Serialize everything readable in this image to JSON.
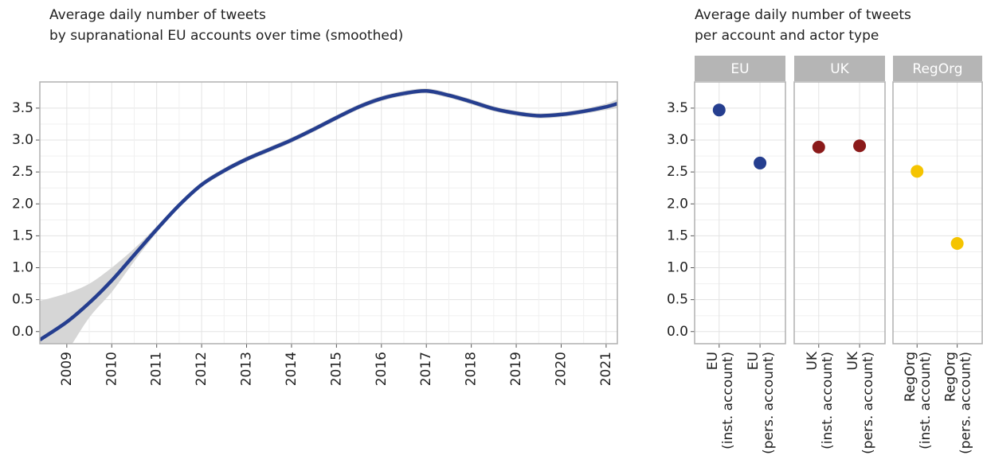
{
  "chart_data": [
    {
      "type": "line",
      "title": [
        "Average daily number of tweets",
        "by supranational EU accounts over time (smoothed)"
      ],
      "x": [
        2008.4,
        2009,
        2009.5,
        2010,
        2010.5,
        2011,
        2011.5,
        2012,
        2012.5,
        2013,
        2013.5,
        2014,
        2014.5,
        2015,
        2015.5,
        2016,
        2016.5,
        2017,
        2017.5,
        2018,
        2018.5,
        2019,
        2019.5,
        2020,
        2020.5,
        2021,
        2021.25
      ],
      "values": [
        -0.13,
        0.15,
        0.45,
        0.8,
        1.2,
        1.6,
        1.98,
        2.3,
        2.52,
        2.7,
        2.85,
        3.0,
        3.17,
        3.35,
        3.52,
        3.65,
        3.73,
        3.77,
        3.7,
        3.6,
        3.49,
        3.42,
        3.38,
        3.4,
        3.45,
        3.52,
        3.57
      ],
      "lower": [
        -0.9,
        -0.32,
        0.22,
        0.62,
        1.1,
        1.55,
        1.94,
        2.26,
        2.48,
        2.66,
        2.81,
        2.96,
        3.13,
        3.31,
        3.48,
        3.61,
        3.69,
        3.73,
        3.66,
        3.56,
        3.45,
        3.38,
        3.34,
        3.36,
        3.41,
        3.47,
        3.5
      ],
      "upper": [
        0.48,
        0.6,
        0.75,
        1.0,
        1.3,
        1.65,
        2.02,
        2.34,
        2.56,
        2.74,
        2.89,
        3.04,
        3.21,
        3.39,
        3.56,
        3.69,
        3.77,
        3.81,
        3.74,
        3.64,
        3.53,
        3.46,
        3.42,
        3.44,
        3.49,
        3.57,
        3.64
      ],
      "color": "#253e8f",
      "band_color": "#d6d6d6",
      "xlim": [
        2008.4,
        2021.25
      ],
      "xticks": [
        2009,
        2010,
        2011,
        2012,
        2013,
        2014,
        2015,
        2016,
        2017,
        2018,
        2019,
        2020,
        2021
      ],
      "ylim": [
        -0.19,
        3.91
      ],
      "yticks": [
        {
          "value": 0,
          "label": "0.0"
        },
        0.5,
        {
          "value": 1,
          "label": "1.0"
        },
        1.5,
        {
          "value": 2,
          "label": "2.0"
        },
        2.5,
        {
          "value": 3,
          "label": "3.0"
        },
        3.5
      ],
      "grid": true
    },
    {
      "type": "scatter",
      "title": [
        "Average daily number of tweets",
        "per account and actor type"
      ],
      "facets": [
        {
          "name": "EU",
          "color": "#253e8f"
        },
        {
          "name": "UK",
          "color": "#8b1a1a"
        },
        {
          "name": "RegOrg",
          "color": "#f5c400"
        }
      ],
      "categories": [
        [
          "EU",
          "(inst. account)"
        ],
        [
          "EU",
          "(pers. account)"
        ],
        [
          "UK",
          "(inst. account)"
        ],
        [
          "UK",
          "(pers. account)"
        ],
        [
          "RegOrg",
          "(inst. account)"
        ],
        [
          "RegOrg",
          "(pers. account)"
        ]
      ],
      "facet_of": [
        "EU",
        "EU",
        "UK",
        "UK",
        "RegOrg",
        "RegOrg"
      ],
      "values": [
        3.47,
        2.64,
        2.89,
        2.91,
        2.51,
        1.38
      ],
      "ylim": [
        -0.19,
        3.91
      ],
      "yticks": [
        {
          "value": 0,
          "label": "0.0"
        },
        0.5,
        {
          "value": 1,
          "label": "1.0"
        },
        1.5,
        {
          "value": 2,
          "label": "2.0"
        },
        2.5,
        {
          "value": 3,
          "label": "3.0"
        },
        3.5
      ],
      "grid": true
    }
  ]
}
